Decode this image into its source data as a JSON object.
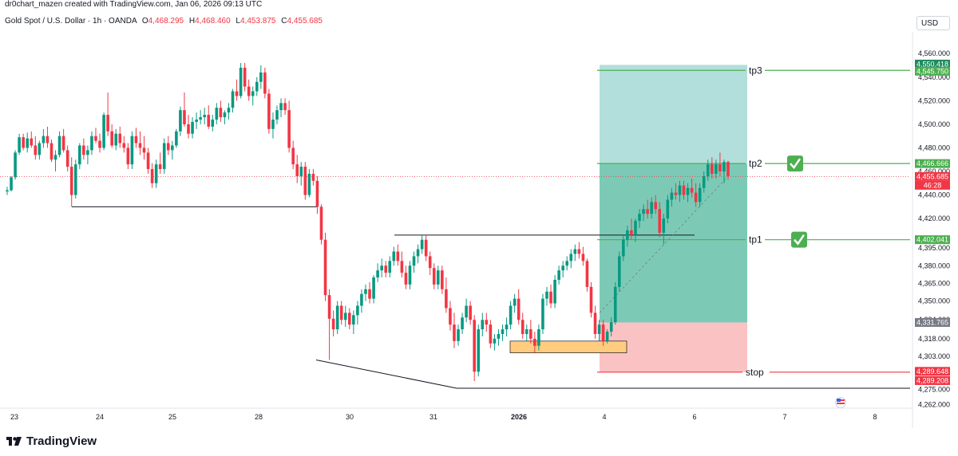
{
  "header": {
    "credit": "dr0chart_mazen created with TradingView.com, Jan 06, 2026 09:13 UTC",
    "symbol": "Gold Spot / U.S. Dollar · 1h · OANDA",
    "ohlc": [
      {
        "label": "O",
        "value": "4,468.295"
      },
      {
        "label": "H",
        "value": "4,468.460"
      },
      {
        "label": "L",
        "value": "4,453.875"
      },
      {
        "label": "C",
        "value": "4,455.685"
      }
    ],
    "currency": "USD"
  },
  "footer": {
    "brand": "TradingView",
    "icon": "tradingview-logo-icon"
  },
  "colors": {
    "up": "#089981",
    "down": "#f23645",
    "target_zone": "#b2dfdb",
    "target_fill": "#7ccab6",
    "stop_zone": "#fbc2c4",
    "level_line": "#4caf50",
    "stop_line": "#f23645",
    "box": "#ffcc80"
  },
  "chart_data": {
    "type": "candlestick",
    "title": "",
    "xlabel": "",
    "ylabel": "",
    "ylim": [
      4255,
      4573
    ],
    "y_ticks": [
      "4,560.000",
      "4,540.000",
      "4,520.000",
      "4,500.000",
      "4,480.000",
      "4,460.000",
      "4,440.000",
      "4,420.000",
      "4,395.000",
      "4,380.000",
      "4,365.000",
      "4,350.000",
      "4,334.000",
      "4,318.000",
      "4,303.000",
      "4,290.000",
      "4,275.000",
      "4,262.000"
    ],
    "x_ticks": [
      "23",
      "24",
      "25",
      "28",
      "30",
      "31",
      "2026",
      "4",
      "6",
      "7",
      "8"
    ],
    "grid": false,
    "candles": [
      [
        4443,
        4447,
        4440,
        4444
      ],
      [
        4444,
        4456,
        4443,
        4455
      ],
      [
        4455,
        4478,
        4453,
        4476
      ],
      [
        4476,
        4492,
        4474,
        4489
      ],
      [
        4489,
        4492,
        4478,
        4480
      ],
      [
        4480,
        4493,
        4476,
        4488
      ],
      [
        4488,
        4494,
        4480,
        4482
      ],
      [
        4482,
        4490,
        4470,
        4474
      ],
      [
        4474,
        4486,
        4470,
        4484
      ],
      [
        4484,
        4496,
        4480,
        4490
      ],
      [
        4490,
        4498,
        4480,
        4484
      ],
      [
        4484,
        4487,
        4468,
        4470
      ],
      [
        4470,
        4478,
        4460,
        4474
      ],
      [
        4474,
        4494,
        4472,
        4490
      ],
      [
        4490,
        4496,
        4476,
        4478
      ],
      [
        4478,
        4482,
        4460,
        4464
      ],
      [
        4464,
        4472,
        4430,
        4440
      ],
      [
        4440,
        4470,
        4437,
        4466
      ],
      [
        4466,
        4484,
        4462,
        4482
      ],
      [
        4482,
        4488,
        4470,
        4474
      ],
      [
        4474,
        4482,
        4466,
        4478
      ],
      [
        4478,
        4494,
        4474,
        4490
      ],
      [
        4490,
        4497,
        4484,
        4486
      ],
      [
        4486,
        4492,
        4476,
        4480
      ],
      [
        4480,
        4510,
        4478,
        4508
      ],
      [
        4508,
        4527,
        4490,
        4494
      ],
      [
        4494,
        4500,
        4480,
        4482
      ],
      [
        4482,
        4496,
        4478,
        4492
      ],
      [
        4492,
        4498,
        4480,
        4484
      ],
      [
        4484,
        4490,
        4476,
        4480
      ],
      [
        4480,
        4484,
        4462,
        4466
      ],
      [
        4466,
        4494,
        4462,
        4490
      ],
      [
        4490,
        4497,
        4480,
        4484
      ],
      [
        4484,
        4494,
        4474,
        4480
      ],
      [
        4480,
        4490,
        4470,
        4476
      ],
      [
        4476,
        4480,
        4458,
        4462
      ],
      [
        4462,
        4467,
        4446,
        4450
      ],
      [
        4450,
        4470,
        4446,
        4466
      ],
      [
        4466,
        4476,
        4458,
        4462
      ],
      [
        4462,
        4488,
        4458,
        4484
      ],
      [
        4484,
        4490,
        4474,
        4478
      ],
      [
        4478,
        4486,
        4470,
        4482
      ],
      [
        4482,
        4496,
        4480,
        4494
      ],
      [
        4494,
        4515,
        4490,
        4512
      ],
      [
        4512,
        4527,
        4498,
        4500
      ],
      [
        4500,
        4508,
        4488,
        4492
      ],
      [
        4492,
        4506,
        4488,
        4502
      ],
      [
        4502,
        4510,
        4496,
        4504
      ],
      [
        4504,
        4512,
        4500,
        4506
      ],
      [
        4506,
        4514,
        4500,
        4508
      ],
      [
        4508,
        4516,
        4496,
        4498
      ],
      [
        4498,
        4508,
        4494,
        4504
      ],
      [
        4504,
        4518,
        4500,
        4514
      ],
      [
        4514,
        4520,
        4502,
        4506
      ],
      [
        4506,
        4512,
        4500,
        4510
      ],
      [
        4510,
        4518,
        4504,
        4514
      ],
      [
        4514,
        4530,
        4510,
        4528
      ],
      [
        4528,
        4538,
        4520,
        4524
      ],
      [
        4524,
        4552,
        4522,
        4548
      ],
      [
        4548,
        4552,
        4528,
        4532
      ],
      [
        4532,
        4538,
        4520,
        4524
      ],
      [
        4524,
        4532,
        4516,
        4528
      ],
      [
        4528,
        4540,
        4524,
        4536
      ],
      [
        4536,
        4550,
        4530,
        4544
      ],
      [
        4544,
        4548,
        4522,
        4526
      ],
      [
        4526,
        4530,
        4492,
        4496
      ],
      [
        4496,
        4510,
        4488,
        4504
      ],
      [
        4504,
        4516,
        4500,
        4512
      ],
      [
        4512,
        4522,
        4506,
        4518
      ],
      [
        4518,
        4522,
        4508,
        4512
      ],
      [
        4512,
        4520,
        4476,
        4480
      ],
      [
        4480,
        4486,
        4462,
        4466
      ],
      [
        4466,
        4474,
        4450,
        4456
      ],
      [
        4456,
        4468,
        4448,
        4464
      ],
      [
        4464,
        4468,
        4436,
        4440
      ],
      [
        4440,
        4462,
        4438,
        4458
      ],
      [
        4458,
        4462,
        4448,
        4452
      ],
      [
        4452,
        4456,
        4424,
        4430
      ],
      [
        4430,
        4432,
        4398,
        4402
      ],
      [
        4402,
        4408,
        4350,
        4355
      ],
      [
        4355,
        4360,
        4300,
        4335
      ],
      [
        4335,
        4342,
        4320,
        4326
      ],
      [
        4326,
        4350,
        4322,
        4346
      ],
      [
        4346,
        4350,
        4330,
        4334
      ],
      [
        4334,
        4346,
        4328,
        4340
      ],
      [
        4340,
        4344,
        4326,
        4330
      ],
      [
        4330,
        4342,
        4322,
        4338
      ],
      [
        4338,
        4350,
        4330,
        4346
      ],
      [
        4346,
        4360,
        4340,
        4356
      ],
      [
        4356,
        4364,
        4350,
        4360
      ],
      [
        4360,
        4366,
        4348,
        4352
      ],
      [
        4352,
        4372,
        4348,
        4370
      ],
      [
        4370,
        4382,
        4366,
        4376
      ],
      [
        4376,
        4386,
        4370,
        4380
      ],
      [
        4380,
        4384,
        4370,
        4374
      ],
      [
        4374,
        4388,
        4370,
        4384
      ],
      [
        4384,
        4396,
        4380,
        4392
      ],
      [
        4392,
        4398,
        4380,
        4384
      ],
      [
        4384,
        4392,
        4370,
        4374
      ],
      [
        4374,
        4380,
        4360,
        4364
      ],
      [
        4364,
        4384,
        4360,
        4380
      ],
      [
        4380,
        4392,
        4374,
        4388
      ],
      [
        4388,
        4398,
        4382,
        4394
      ],
      [
        4394,
        4406,
        4390,
        4402
      ],
      [
        4402,
        4406,
        4384,
        4388
      ],
      [
        4388,
        4392,
        4372,
        4378
      ],
      [
        4378,
        4382,
        4360,
        4364
      ],
      [
        4364,
        4380,
        4360,
        4376
      ],
      [
        4376,
        4380,
        4356,
        4360
      ],
      [
        4360,
        4370,
        4340,
        4344
      ],
      [
        4344,
        4350,
        4325,
        4330
      ],
      [
        4330,
        4340,
        4310,
        4316
      ],
      [
        4316,
        4330,
        4312,
        4326
      ],
      [
        4326,
        4340,
        4322,
        4336
      ],
      [
        4336,
        4352,
        4332,
        4346
      ],
      [
        4346,
        4350,
        4330,
        4334
      ],
      [
        4334,
        4338,
        4282,
        4290
      ],
      [
        4290,
        4330,
        4286,
        4326
      ],
      [
        4326,
        4340,
        4320,
        4334
      ],
      [
        4334,
        4340,
        4324,
        4330
      ],
      [
        4330,
        4334,
        4310,
        4314
      ],
      [
        4314,
        4322,
        4308,
        4318
      ],
      [
        4318,
        4326,
        4312,
        4322
      ],
      [
        4322,
        4330,
        4316,
        4326
      ],
      [
        4326,
        4336,
        4320,
        4330
      ],
      [
        4330,
        4350,
        4326,
        4346
      ],
      [
        4346,
        4356,
        4340,
        4352
      ],
      [
        4352,
        4360,
        4330,
        4334
      ],
      [
        4334,
        4340,
        4318,
        4322
      ],
      [
        4322,
        4330,
        4316,
        4326
      ],
      [
        4326,
        4334,
        4314,
        4318
      ],
      [
        4318,
        4324,
        4306,
        4312
      ],
      [
        4312,
        4330,
        4308,
        4326
      ],
      [
        4326,
        4356,
        4322,
        4352
      ],
      [
        4352,
        4362,
        4346,
        4358
      ],
      [
        4358,
        4364,
        4344,
        4348
      ],
      [
        4348,
        4372,
        4344,
        4368
      ],
      [
        4368,
        4380,
        4364,
        4376
      ],
      [
        4376,
        4384,
        4370,
        4380
      ],
      [
        4380,
        4388,
        4376,
        4384
      ],
      [
        4384,
        4394,
        4378,
        4390
      ],
      [
        4390,
        4398,
        4384,
        4394
      ],
      [
        4394,
        4400,
        4386,
        4390
      ],
      [
        4390,
        4396,
        4380,
        4384
      ],
      [
        4384,
        4386,
        4358,
        4362
      ],
      [
        4362,
        4366,
        4336,
        4340
      ],
      [
        4340,
        4346,
        4318,
        4322
      ],
      [
        4322,
        4334,
        4316,
        4330
      ],
      [
        4330,
        4334,
        4312,
        4316
      ],
      [
        4316,
        4326,
        4314,
        4324
      ],
      [
        4324,
        4336,
        4320,
        4332
      ],
      [
        4332,
        4366,
        4330,
        4362
      ],
      [
        4362,
        4392,
        4358,
        4388
      ],
      [
        4388,
        4406,
        4384,
        4402
      ],
      [
        4402,
        4414,
        4396,
        4410
      ],
      [
        4410,
        4420,
        4402,
        4406
      ],
      [
        4406,
        4420,
        4400,
        4418
      ],
      [
        4418,
        4428,
        4412,
        4424
      ],
      [
        4424,
        4432,
        4418,
        4428
      ],
      [
        4428,
        4436,
        4420,
        4424
      ],
      [
        4424,
        4438,
        4420,
        4434
      ],
      [
        4434,
        4440,
        4424,
        4428
      ],
      [
        4428,
        4434,
        4404,
        4408
      ],
      [
        4408,
        4424,
        4398,
        4420
      ],
      [
        4420,
        4440,
        4416,
        4436
      ],
      [
        4436,
        4446,
        4430,
        4442
      ],
      [
        4442,
        4450,
        4436,
        4440
      ],
      [
        4440,
        4452,
        4434,
        4448
      ],
      [
        4448,
        4452,
        4436,
        4440
      ],
      [
        4440,
        4450,
        4434,
        4446
      ],
      [
        4446,
        4454,
        4438,
        4442
      ],
      [
        4442,
        4450,
        4430,
        4434
      ],
      [
        4434,
        4450,
        4430,
        4446
      ],
      [
        4446,
        4460,
        4442,
        4456
      ],
      [
        4456,
        4470,
        4452,
        4466
      ],
      [
        4466,
        4472,
        4454,
        4458
      ],
      [
        4458,
        4470,
        4454,
        4466
      ],
      [
        4466,
        4476,
        4456,
        4460
      ],
      [
        4460,
        4470,
        4450,
        4468
      ],
      [
        4468,
        4469,
        4453,
        4456
      ]
    ],
    "last_price": "4,455.685",
    "countdown": "46:28",
    "price_labels": [
      {
        "value": "4,550.418",
        "color": "#1e8a5e"
      },
      {
        "value": "4,545.750",
        "color": "#4caf50"
      },
      {
        "value": "4,466.666",
        "color": "#4caf50"
      },
      {
        "value": "4,402.041",
        "color": "#4caf50"
      },
      {
        "value": "4,331.765",
        "color": "#787b86"
      },
      {
        "value": "4,289.648",
        "color": "#f23645"
      },
      {
        "value": "4,289.208",
        "color": "#f23645"
      }
    ],
    "annotations": [
      "tp3",
      "tp2",
      "tp1",
      "stop"
    ],
    "levels": {
      "tp3": 4545.75,
      "tp2": 4466.666,
      "tp1": 4402.041,
      "entry": 4331.765,
      "stop": 4289.648,
      "zone_top": 4550.418
    }
  }
}
